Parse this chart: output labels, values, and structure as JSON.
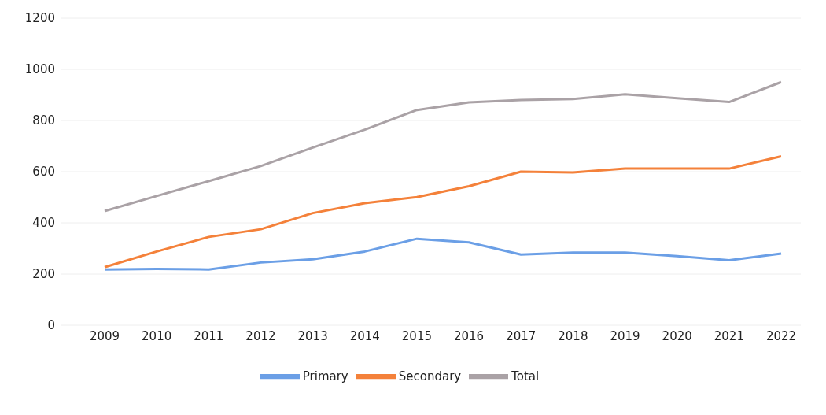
{
  "chart_data": {
    "type": "line",
    "categories": [
      "2009",
      "2010",
      "2011",
      "2012",
      "2013",
      "2014",
      "2015",
      "2016",
      "2017",
      "2018",
      "2019",
      "2020",
      "2021",
      "2022"
    ],
    "series": [
      {
        "name": "Primary",
        "color": "#6b9fe6",
        "values": [
          218,
          220,
          218,
          245,
          258,
          288,
          338,
          324,
          276,
          284,
          284,
          270,
          254,
          280
        ]
      },
      {
        "name": "Secondary",
        "color": "#f4813a",
        "values": [
          227,
          288,
          345,
          375,
          438,
          477,
          501,
          543,
          600,
          597,
          612,
          612,
          612,
          660
        ]
      },
      {
        "name": "Total",
        "color": "#aaa2a6",
        "values": [
          446,
          505,
          563,
          622,
          694,
          764,
          841,
          871,
          880,
          884,
          902,
          887,
          872,
          950
        ]
      }
    ],
    "ylim": [
      0,
      1200
    ],
    "yticks": [
      0,
      200,
      400,
      600,
      800,
      1000,
      1200
    ],
    "grid": "y",
    "legend": "bottom",
    "marker": "none",
    "line_style": "solid"
  }
}
